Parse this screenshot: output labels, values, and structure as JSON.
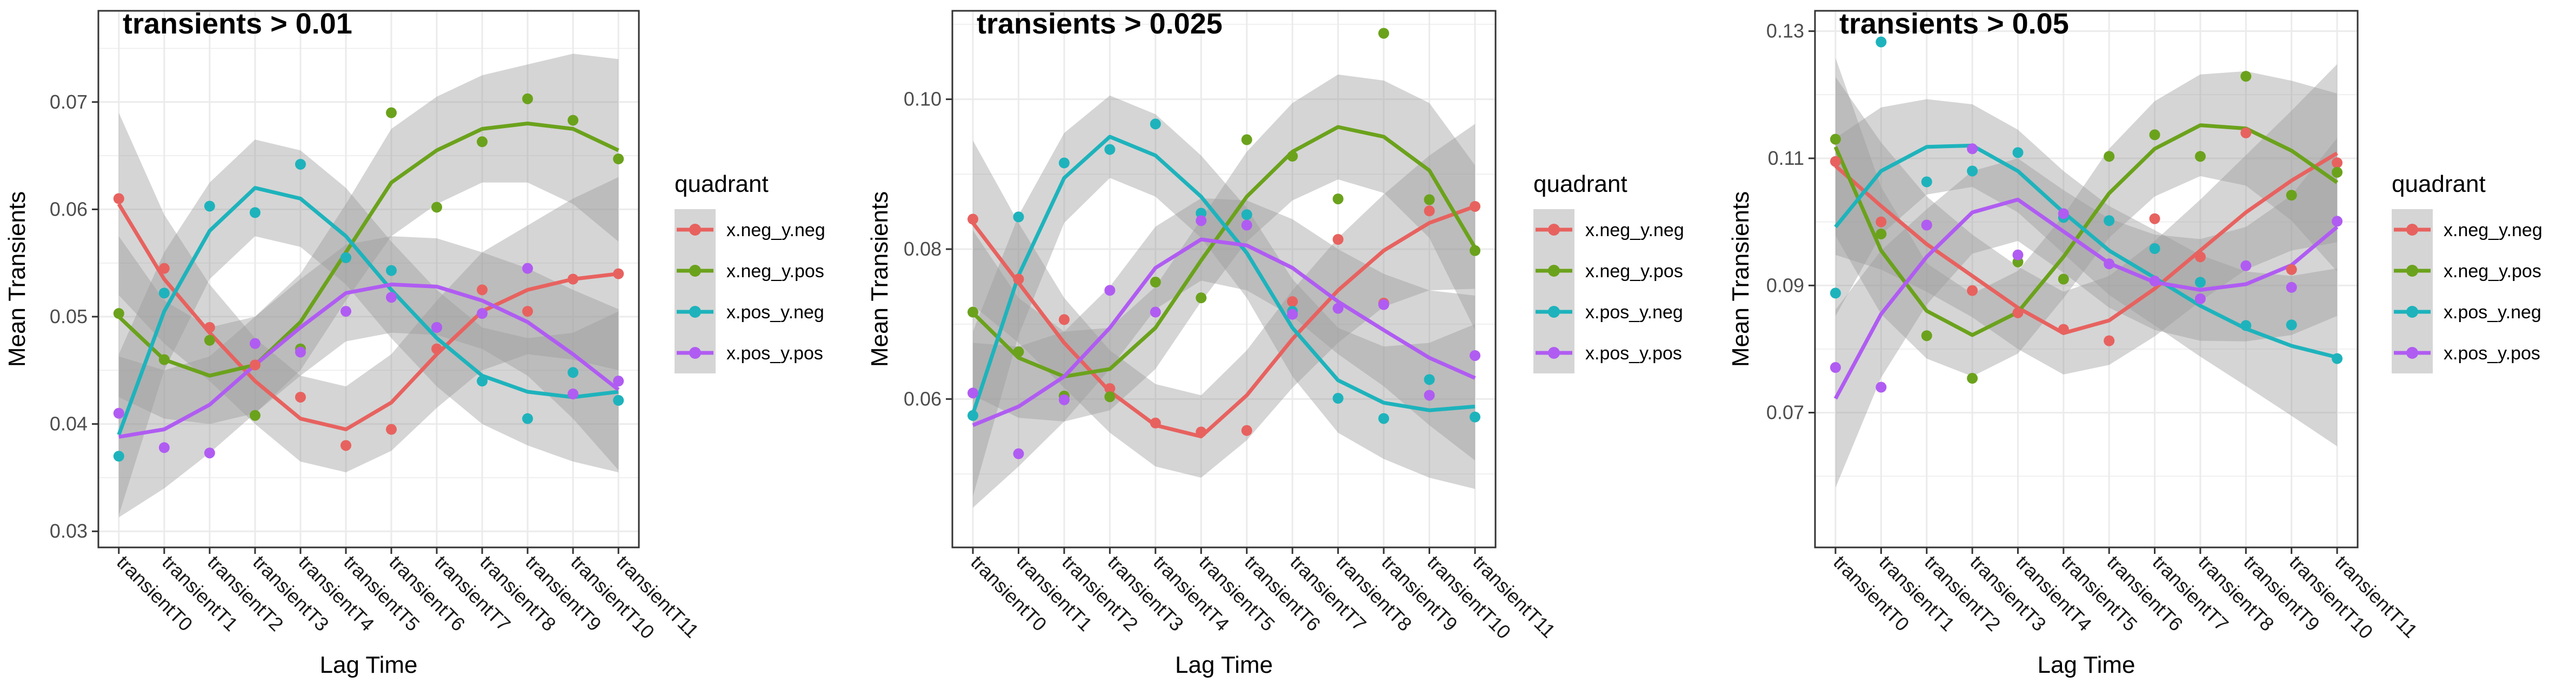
{
  "x_axis_label": "Lag Time",
  "y_axis_label": "Mean Transients",
  "legend": {
    "title": "quadrant",
    "entries": [
      "x.neg_y.neg",
      "x.neg_y.pos",
      "x.pos_y.neg",
      "x.pos_y.pos"
    ]
  },
  "colors": {
    "x.neg_y.neg": "#E7625F",
    "x.neg_y.pos": "#6BA21C",
    "x.pos_y.neg": "#1EB3BC",
    "x.pos_y.pos": "#B05CF2",
    "ribbon": "#9c9c9c",
    "grid": "#ebebeb"
  },
  "chart_data": [
    {
      "type": "scatter",
      "title": "transients > 0.01",
      "xlabel": "Lag Time",
      "ylabel": "Mean Transients",
      "categories": [
        "transientT0",
        "transientT1",
        "transientT2",
        "transientT3",
        "transientT4",
        "transientT5",
        "transientT6",
        "transientT7",
        "transientT8",
        "transientT9",
        "transientT10",
        "transientT11"
      ],
      "ylim": [
        0.0285,
        0.0785
      ],
      "yticks": [
        0.03,
        0.04,
        0.05,
        0.06,
        0.07
      ],
      "ytick_labels": [
        "0.03",
        "0.04",
        "0.05",
        "0.06",
        "0.07"
      ],
      "smoothing": "loess with confidence band",
      "grid": true,
      "series": [
        {
          "name": "x.neg_y.neg",
          "points": [
            0.061,
            0.0545,
            0.049,
            0.0455,
            0.0425,
            0.038,
            0.0395,
            0.047,
            0.0525,
            0.0505,
            0.0535,
            0.054
          ],
          "trend": [
            0.0605,
            0.0535,
            0.0485,
            0.044,
            0.0405,
            0.0395,
            0.042,
            0.0465,
            0.0505,
            0.0525,
            0.0535,
            0.054
          ],
          "band": [
            0.0085,
            0.006,
            0.0045,
            0.004,
            0.004,
            0.004,
            0.0045,
            0.005,
            0.0055,
            0.006,
            0.0075,
            0.009
          ]
        },
        {
          "name": "x.neg_y.pos",
          "points": [
            0.0503,
            0.046,
            0.0478,
            0.0408,
            0.047,
            0.0555,
            0.069,
            0.0602,
            0.0663,
            0.0703,
            0.0683,
            0.0647
          ],
          "trend": [
            0.05,
            0.046,
            0.0445,
            0.0455,
            0.0495,
            0.056,
            0.0625,
            0.0655,
            0.0675,
            0.068,
            0.0675,
            0.0655
          ],
          "band": [
            0.0075,
            0.0055,
            0.0045,
            0.0045,
            0.0045,
            0.0045,
            0.005,
            0.005,
            0.005,
            0.0055,
            0.007,
            0.0085
          ]
        },
        {
          "name": "x.pos_y.neg",
          "points": [
            0.037,
            0.0522,
            0.0603,
            0.0597,
            0.0642,
            0.0555,
            0.0543,
            0.049,
            0.044,
            0.0405,
            0.0448,
            0.0422
          ],
          "trend": [
            0.039,
            0.0505,
            0.058,
            0.062,
            0.061,
            0.0575,
            0.0525,
            0.048,
            0.0445,
            0.043,
            0.0425,
            0.043
          ],
          "band": [
            0.0075,
            0.0055,
            0.0045,
            0.0045,
            0.0045,
            0.0045,
            0.0045,
            0.0045,
            0.0045,
            0.005,
            0.006,
            0.0075
          ]
        },
        {
          "name": "x.pos_y.pos",
          "points": [
            0.041,
            0.0378,
            0.0373,
            0.0475,
            0.0467,
            0.0505,
            0.0518,
            0.049,
            0.0503,
            0.0545,
            0.0428,
            0.044
          ],
          "trend": [
            0.0388,
            0.0395,
            0.0418,
            0.0455,
            0.049,
            0.0522,
            0.053,
            0.0528,
            0.0515,
            0.0495,
            0.0465,
            0.0432
          ],
          "band": [
            0.0075,
            0.0055,
            0.0045,
            0.0045,
            0.0045,
            0.0045,
            0.0045,
            0.0045,
            0.0045,
            0.005,
            0.006,
            0.0075
          ]
        }
      ]
    },
    {
      "type": "scatter",
      "title": "transients > 0.025",
      "xlabel": "Lag Time",
      "ylabel": "Mean Transients",
      "categories": [
        "transientT0",
        "transientT1",
        "transientT2",
        "transientT3",
        "transientT4",
        "transientT5",
        "transientT6",
        "transientT7",
        "transientT8",
        "transientT9",
        "transientT10",
        "transientT11"
      ],
      "ylim": [
        0.0402,
        0.1118
      ],
      "yticks": [
        0.06,
        0.08,
        0.1
      ],
      "ytick_labels": [
        "0.06",
        "0.08",
        "0.10"
      ],
      "smoothing": "loess with confidence band",
      "grid": true,
      "series": [
        {
          "name": "x.neg_y.neg",
          "points": [
            0.084,
            0.076,
            0.0706,
            0.0614,
            0.0568,
            0.0556,
            0.0558,
            0.073,
            0.0813,
            0.0728,
            0.0851,
            0.0857
          ],
          "trend": [
            0.0835,
            0.0755,
            0.0675,
            0.061,
            0.0565,
            0.055,
            0.0605,
            0.068,
            0.0745,
            0.0798,
            0.0835,
            0.0857
          ],
          "band": [
            0.011,
            0.008,
            0.006,
            0.0055,
            0.0055,
            0.0055,
            0.006,
            0.0065,
            0.007,
            0.0075,
            0.009,
            0.011
          ]
        },
        {
          "name": "x.neg_y.pos",
          "points": [
            0.0716,
            0.0663,
            0.0604,
            0.0603,
            0.0756,
            0.0735,
            0.0946,
            0.0924,
            0.0867,
            0.1088,
            0.0866,
            0.0798
          ],
          "trend": [
            0.0715,
            0.0655,
            0.063,
            0.064,
            0.0695,
            0.0785,
            0.087,
            0.093,
            0.0963,
            0.095,
            0.0905,
            0.0802
          ],
          "band": [
            0.011,
            0.008,
            0.006,
            0.0055,
            0.0055,
            0.0055,
            0.006,
            0.0065,
            0.007,
            0.0075,
            0.009,
            0.011
          ]
        },
        {
          "name": "x.pos_y.neg",
          "points": [
            0.0578,
            0.0843,
            0.0915,
            0.0933,
            0.0967,
            0.0848,
            0.0846,
            0.0717,
            0.0601,
            0.0574,
            0.0626,
            0.0576
          ],
          "trend": [
            0.058,
            0.0765,
            0.0895,
            0.095,
            0.0925,
            0.087,
            0.0795,
            0.0695,
            0.0625,
            0.0595,
            0.0585,
            0.059
          ],
          "band": [
            0.011,
            0.008,
            0.006,
            0.0055,
            0.0055,
            0.0055,
            0.006,
            0.0065,
            0.007,
            0.0075,
            0.009,
            0.011
          ]
        },
        {
          "name": "x.pos_y.pos",
          "points": [
            0.0608,
            0.0527,
            0.0599,
            0.0745,
            0.0716,
            0.0838,
            0.0832,
            0.0713,
            0.0721,
            0.0726,
            0.0605,
            0.0658
          ],
          "trend": [
            0.0565,
            0.059,
            0.063,
            0.0695,
            0.0775,
            0.0813,
            0.0805,
            0.0775,
            0.073,
            0.0692,
            0.0655,
            0.0628
          ],
          "band": [
            0.011,
            0.008,
            0.006,
            0.0055,
            0.0055,
            0.0055,
            0.006,
            0.0065,
            0.007,
            0.0075,
            0.009,
            0.011
          ]
        }
      ]
    },
    {
      "type": "scatter",
      "title": "transients > 0.05",
      "xlabel": "Lag Time",
      "ylabel": "Mean Transients",
      "categories": [
        "transientT0",
        "transientT1",
        "transientT2",
        "transientT3",
        "transientT4",
        "transientT5",
        "transientT6",
        "transientT7",
        "transientT8",
        "transientT9",
        "transientT10",
        "transientT11"
      ],
      "ylim": [
        0.0488,
        0.1332
      ],
      "yticks": [
        0.07,
        0.09,
        0.11,
        0.13
      ],
      "ytick_labels": [
        "0.07",
        "0.09",
        "0.11",
        "0.13"
      ],
      "smoothing": "loess with confidence band",
      "grid": true,
      "series": [
        {
          "name": "x.neg_y.neg",
          "points": [
            0.1095,
            0.1,
            0.0995,
            0.0892,
            0.0857,
            0.0831,
            0.0813,
            0.1005,
            0.0945,
            0.114,
            0.0925,
            0.1093
          ],
          "trend": [
            0.1088,
            0.1025,
            0.0965,
            0.0915,
            0.0865,
            0.0825,
            0.0845,
            0.0895,
            0.0955,
            0.1015,
            0.1065,
            0.1108
          ],
          "band": [
            0.014,
            0.01,
            0.0075,
            0.0065,
            0.0065,
            0.0065,
            0.007,
            0.0075,
            0.008,
            0.009,
            0.011,
            0.014
          ]
        },
        {
          "name": "x.neg_y.pos",
          "points": [
            0.113,
            0.0981,
            0.0821,
            0.0754,
            0.0937,
            0.091,
            0.1103,
            0.1137,
            0.1103,
            0.1229,
            0.1042,
            0.1078
          ],
          "trend": [
            0.1118,
            0.0955,
            0.086,
            0.0822,
            0.0858,
            0.0945,
            0.1045,
            0.1115,
            0.1152,
            0.1147,
            0.1112,
            0.1062
          ],
          "band": [
            0.014,
            0.01,
            0.0075,
            0.0065,
            0.0065,
            0.0065,
            0.007,
            0.0075,
            0.008,
            0.009,
            0.011,
            0.014
          ]
        },
        {
          "name": "x.pos_y.neg",
          "points": [
            0.0888,
            0.1283,
            0.1063,
            0.108,
            0.1109,
            0.1007,
            0.1002,
            0.0958,
            0.0905,
            0.0837,
            0.0838,
            0.0785
          ],
          "trend": [
            0.0992,
            0.108,
            0.1118,
            0.112,
            0.108,
            0.1015,
            0.0955,
            0.0912,
            0.0868,
            0.0832,
            0.0805,
            0.0787
          ],
          "band": [
            0.014,
            0.01,
            0.0075,
            0.0065,
            0.0065,
            0.0065,
            0.007,
            0.0075,
            0.008,
            0.009,
            0.011,
            0.014
          ]
        },
        {
          "name": "x.pos_y.pos",
          "points": [
            0.0771,
            0.074,
            0.0995,
            0.1115,
            0.0948,
            0.1013,
            0.0934,
            0.0907,
            0.0879,
            0.0931,
            0.0897,
            0.1001
          ],
          "trend": [
            0.0722,
            0.0855,
            0.0945,
            0.1015,
            0.1035,
            0.0985,
            0.0935,
            0.0905,
            0.0893,
            0.0902,
            0.0932,
            0.0992
          ],
          "band": [
            0.014,
            0.01,
            0.0075,
            0.0065,
            0.0065,
            0.0065,
            0.007,
            0.0075,
            0.008,
            0.009,
            0.011,
            0.014
          ]
        }
      ]
    }
  ]
}
